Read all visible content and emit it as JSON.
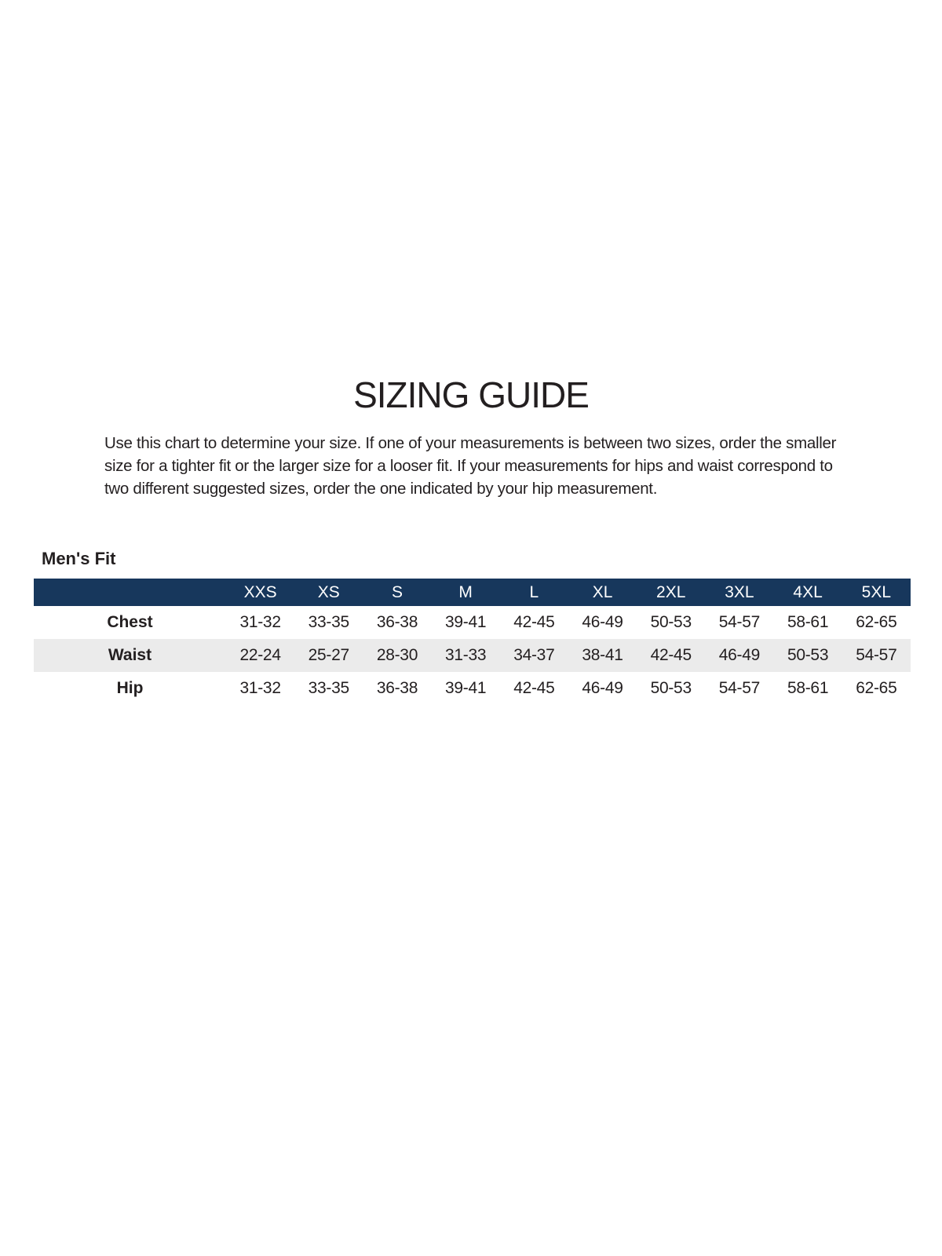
{
  "page": {
    "title": "SIZING GUIDE",
    "intro_lines": [
      "Use this chart to determine your size. If one of your measurements is between two sizes, order the smaller",
      "size for a tighter fit or the larger size for a looser fit. If your measurements for hips and waist correspond to",
      "two different suggested sizes, order the one indicated by your hip measurement."
    ]
  },
  "colors": {
    "header_bg": "#17375c",
    "row_alt_bg": "#ebebeb",
    "text": "#231f20",
    "header_text": "#ffffff"
  },
  "size_table": {
    "section_label": "Men's Fit",
    "columns": [
      "XXS",
      "XS",
      "S",
      "M",
      "L",
      "XL",
      "2XL",
      "3XL",
      "4XL",
      "5XL"
    ],
    "rows": [
      {
        "label": "Chest",
        "values": [
          "31-32",
          "33-35",
          "36-38",
          "39-41",
          "42-45",
          "46-49",
          "50-53",
          "54-57",
          "58-61",
          "62-65"
        ]
      },
      {
        "label": "Waist",
        "values": [
          "22-24",
          "25-27",
          "28-30",
          "31-33",
          "34-37",
          "38-41",
          "42-45",
          "46-49",
          "50-53",
          "54-57"
        ]
      },
      {
        "label": "Hip",
        "values": [
          "31-32",
          "33-35",
          "36-38",
          "39-41",
          "42-45",
          "46-49",
          "50-53",
          "54-57",
          "58-61",
          "62-65"
        ]
      }
    ]
  }
}
